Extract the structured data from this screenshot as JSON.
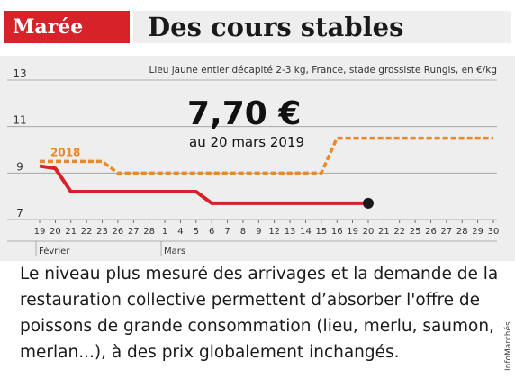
{
  "header": {
    "section": "Marée",
    "title": "Des cours stables"
  },
  "chart_data": {
    "type": "line",
    "subtitle": "Lieu jaune entier décapité 2-3 kg, France, stade grossiste Rungis, en €/kg",
    "callout_value": "7,70 €",
    "callout_date": "au 20 mars 2019",
    "ylim": [
      7,
      13
    ],
    "yticks": [
      "13",
      "11",
      "9",
      "7"
    ],
    "xtick_labels": [
      "19",
      "20",
      "21",
      "22",
      "23",
      "26",
      "27",
      "28",
      "1",
      "4",
      "5",
      "6",
      "7",
      "8",
      "9",
      "12",
      "13",
      "14",
      "15",
      "16",
      "19",
      "20",
      "21",
      "22",
      "25",
      "26",
      "27",
      "28",
      "29",
      "30"
    ],
    "months": [
      {
        "label": "Février",
        "at": "19"
      },
      {
        "label": "Mars",
        "at": "1"
      }
    ],
    "grid": true,
    "series": [
      {
        "name": "2018",
        "color": "#e8892b",
        "style": "dashed",
        "points": [
          {
            "x": "19 Février",
            "y": 9.5
          },
          {
            "x": "23 Février",
            "y": 9.5
          },
          {
            "x": "26 Février",
            "y": 9.0
          },
          {
            "x": "15 Mars",
            "y": 9.0
          },
          {
            "x": "16 Mars",
            "y": 10.5
          },
          {
            "x": "30 Mars",
            "y": 10.5
          }
        ]
      },
      {
        "name": "",
        "color": "#d8222a",
        "style": "solid",
        "points": [
          {
            "x": "19 Février",
            "y": 9.3
          },
          {
            "x": "20 Février",
            "y": 9.2
          },
          {
            "x": "21 Février",
            "y": 8.2
          },
          {
            "x": "5 Mars",
            "y": 8.2
          },
          {
            "x": "6 Mars",
            "y": 7.7
          },
          {
            "x": "20 Mars",
            "y": 7.7
          }
        ]
      }
    ]
  },
  "caption": "Le niveau plus mesuré des arrivages et la demande de la restauration collective permettent d’absorber l'offre de poissons de grande consommation (lieu, merlu, saumon, merlan...), à des prix globalement inchangés.",
  "credit": "InfoMarchés"
}
